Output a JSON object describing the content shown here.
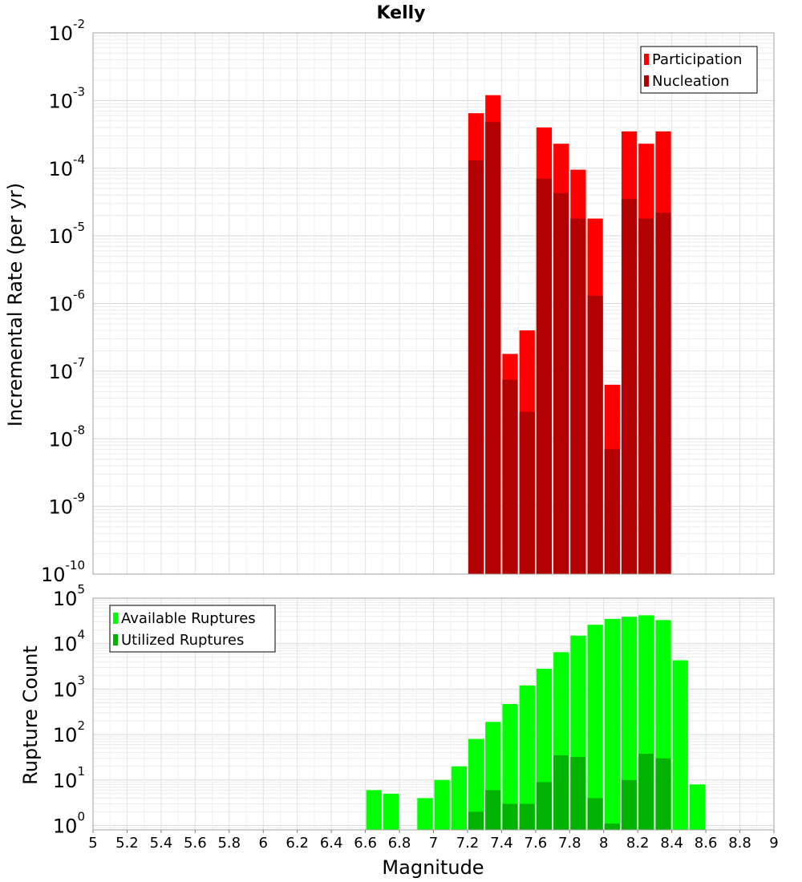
{
  "chart_data": [
    {
      "type": "bar",
      "title": "Kelly",
      "ylabel": "Incremental Rate (per yr)",
      "yscale": "log",
      "ylim": [
        1e-10,
        0.01
      ],
      "xlim": [
        5,
        9
      ],
      "grid": true,
      "legend_position": "top-right",
      "bar_width": 0.1,
      "x": [
        7.25,
        7.35,
        7.45,
        7.55,
        7.65,
        7.75,
        7.85,
        7.95,
        8.05,
        8.15,
        8.25,
        8.35
      ],
      "series": [
        {
          "name": "Participation",
          "color": "#ff0000",
          "values": [
            0.00065,
            0.0012,
            1.8e-07,
            4e-07,
            0.0004,
            0.00023,
            9.5e-05,
            1.8e-05,
            6.3e-08,
            0.00035,
            0.00023,
            0.00035
          ]
        },
        {
          "name": "Nucleation",
          "color": "#b30000",
          "values": [
            0.00013,
            0.00048,
            7.5e-08,
            2.5e-08,
            7e-05,
            4.3e-05,
            1.8e-05,
            1.3e-06,
            7e-09,
            3.5e-05,
            1.8e-05,
            2.2e-05
          ]
        }
      ],
      "ytick_exponents": [
        -10,
        -9,
        -8,
        -7,
        -6,
        -5,
        -4,
        -3,
        -2
      ]
    },
    {
      "type": "bar",
      "xlabel": "Magnitude",
      "ylabel": "Rupture Count",
      "yscale": "log",
      "ylim": [
        0.8,
        100000.0
      ],
      "xlim": [
        5,
        9
      ],
      "grid": true,
      "legend_position": "top-left",
      "bar_width": 0.1,
      "x": [
        6.65,
        6.75,
        6.95,
        7.05,
        7.15,
        7.25,
        7.35,
        7.45,
        7.55,
        7.65,
        7.75,
        7.85,
        7.95,
        8.05,
        8.15,
        8.25,
        8.35,
        8.45,
        8.55
      ],
      "series": [
        {
          "name": "Available Ruptures",
          "color": "#00ff00",
          "values": [
            6,
            5,
            4,
            10,
            20,
            80,
            190,
            470,
            1200,
            2800,
            6500,
            15000,
            26000,
            35000,
            39000,
            42000,
            33000,
            4300,
            8
          ]
        },
        {
          "name": "Utilized Ruptures",
          "color": "#00b300",
          "values": [
            0,
            0,
            0,
            0,
            0,
            2,
            6,
            3,
            3,
            9,
            35,
            32,
            4,
            1.1,
            10,
            38,
            30,
            0,
            0
          ]
        }
      ],
      "ytick_exponents": [
        0,
        1,
        2,
        3,
        4,
        5
      ],
      "xticks": [
        "5",
        "5.2",
        "5.4",
        "5.6",
        "5.8",
        "6",
        "6.2",
        "6.4",
        "6.6",
        "6.8",
        "7",
        "7.2",
        "7.4",
        "7.6",
        "7.8",
        "8",
        "8.2",
        "8.4",
        "8.6",
        "8.8",
        "9"
      ]
    }
  ]
}
